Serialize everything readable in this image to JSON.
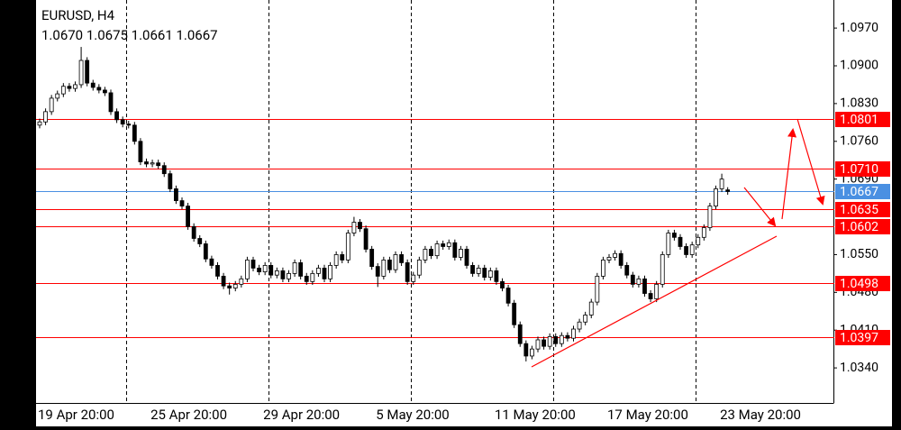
{
  "chart_data": {
    "type": "candlestick",
    "title": "EURUSD, H4",
    "subtitle": "1.0670 1.0675 1.0661 1.0667",
    "categories": [
      "19 Apr 20:00",
      null,
      null,
      null,
      null,
      null,
      null,
      null,
      null,
      null,
      null,
      null,
      null,
      null,
      null,
      null,
      null,
      null,
      null,
      "25 Apr 20:00",
      null,
      null,
      null,
      null,
      null,
      null,
      null,
      null,
      null,
      null,
      null,
      null,
      null,
      null,
      null,
      null,
      null,
      null,
      "29 Apr 20:00",
      null,
      null,
      null,
      null,
      null,
      null,
      null,
      null,
      null,
      null,
      null,
      null,
      null,
      null,
      null,
      null,
      null,
      null,
      "5 May 20:00",
      null,
      null,
      null,
      null,
      null,
      null,
      null,
      null,
      null,
      null,
      null,
      null,
      null,
      null,
      null,
      null,
      null,
      null,
      null,
      "11 May 20:00",
      null,
      null,
      null,
      null,
      null,
      null,
      null,
      null,
      null,
      null,
      null,
      null,
      null,
      null,
      null,
      null,
      null,
      null,
      "17 May 20:00",
      null,
      null,
      null,
      null,
      null,
      null,
      null,
      null,
      null,
      null,
      null,
      null,
      null,
      null,
      null,
      null,
      null,
      null,
      "23 May 20:00",
      null
    ],
    "ohlc": [
      [
        1.079,
        1.0802,
        1.0784,
        1.0796
      ],
      [
        1.0796,
        1.0821,
        1.079,
        1.0815
      ],
      [
        1.0815,
        1.0846,
        1.0809,
        1.084
      ],
      [
        1.084,
        1.0854,
        1.0834,
        1.0848
      ],
      [
        1.0848,
        1.0868,
        1.0842,
        1.0862
      ],
      [
        1.0862,
        1.0868,
        1.0852,
        1.0858
      ],
      [
        1.0858,
        1.0871,
        1.0852,
        1.0865
      ],
      [
        1.0865,
        1.0935,
        1.0859,
        1.091
      ],
      [
        1.091,
        1.0916,
        1.0862,
        1.0868
      ],
      [
        1.0868,
        1.0874,
        1.0854,
        1.086
      ],
      [
        1.086,
        1.0866,
        1.0849,
        1.0855
      ],
      [
        1.0855,
        1.0861,
        1.0844,
        1.085
      ],
      [
        1.085,
        1.0856,
        1.0809,
        1.0815
      ],
      [
        1.0815,
        1.0821,
        1.0794,
        1.08
      ],
      [
        1.08,
        1.0806,
        1.0786,
        1.0792
      ],
      [
        1.0792,
        1.0798,
        1.0784,
        1.079
      ],
      [
        1.079,
        1.0796,
        1.0754,
        1.076
      ],
      [
        1.076,
        1.0766,
        1.0716,
        1.0722
      ],
      [
        1.0722,
        1.0728,
        1.0712,
        1.0718
      ],
      [
        1.0718,
        1.0726,
        1.0712,
        1.072
      ],
      [
        1.072,
        1.0726,
        1.0709,
        1.0715
      ],
      [
        1.0715,
        1.0721,
        1.0694,
        1.07
      ],
      [
        1.07,
        1.0706,
        1.0666,
        1.0672
      ],
      [
        1.0672,
        1.0678,
        1.0644,
        1.065
      ],
      [
        1.065,
        1.0656,
        1.0634,
        1.064
      ],
      [
        1.064,
        1.0646,
        1.0596,
        1.0602
      ],
      [
        1.0602,
        1.0608,
        1.0574,
        1.058
      ],
      [
        1.058,
        1.0586,
        1.0564,
        1.057
      ],
      [
        1.057,
        1.0576,
        1.0536,
        1.0542
      ],
      [
        1.0542,
        1.0548,
        1.0524,
        1.053
      ],
      [
        1.053,
        1.0536,
        1.0504,
        1.051
      ],
      [
        1.051,
        1.0516,
        1.0486,
        1.0492
      ],
      [
        1.0492,
        1.0498,
        1.0476,
        1.0488
      ],
      [
        1.0488,
        1.0501,
        1.0482,
        1.0495
      ],
      [
        1.0495,
        1.0511,
        1.0489,
        1.0505
      ],
      [
        1.0505,
        1.0546,
        1.0499,
        1.054
      ],
      [
        1.054,
        1.0546,
        1.0519,
        1.0525
      ],
      [
        1.0525,
        1.0531,
        1.0512,
        1.0518
      ],
      [
        1.0518,
        1.0536,
        1.0512,
        1.053
      ],
      [
        1.053,
        1.0536,
        1.0506,
        1.0512
      ],
      [
        1.0512,
        1.0526,
        1.0506,
        1.052
      ],
      [
        1.052,
        1.0526,
        1.0499,
        1.0505
      ],
      [
        1.0505,
        1.0521,
        1.0499,
        1.0515
      ],
      [
        1.0515,
        1.0541,
        1.0509,
        1.0535
      ],
      [
        1.0535,
        1.0541,
        1.0504,
        1.051
      ],
      [
        1.051,
        1.0516,
        1.0494,
        1.05
      ],
      [
        1.05,
        1.0521,
        1.0494,
        1.0515
      ],
      [
        1.0515,
        1.0531,
        1.0509,
        1.0525
      ],
      [
        1.0525,
        1.0531,
        1.0499,
        1.0505
      ],
      [
        1.0505,
        1.0536,
        1.0499,
        1.053
      ],
      [
        1.053,
        1.0556,
        1.0524,
        1.055
      ],
      [
        1.055,
        1.0556,
        1.0534,
        1.054
      ],
      [
        1.054,
        1.0596,
        1.0534,
        1.059
      ],
      [
        1.059,
        1.062,
        1.0584,
        1.061
      ],
      [
        1.061,
        1.0616,
        1.0592,
        1.0598
      ],
      [
        1.0598,
        1.0604,
        1.0554,
        1.056
      ],
      [
        1.056,
        1.0566,
        1.0522,
        1.0528
      ],
      [
        1.0528,
        1.0534,
        1.049,
        1.051
      ],
      [
        1.051,
        1.0546,
        1.0504,
        1.054
      ],
      [
        1.054,
        1.0546,
        1.0516,
        1.0522
      ],
      [
        1.0522,
        1.0556,
        1.0516,
        1.055
      ],
      [
        1.055,
        1.0556,
        1.0529,
        1.0535
      ],
      [
        1.0535,
        1.0541,
        1.0494,
        1.05
      ],
      [
        1.05,
        1.0518,
        1.0494,
        1.0512
      ],
      [
        1.0512,
        1.0546,
        1.0506,
        1.054
      ],
      [
        1.054,
        1.0566,
        1.0534,
        1.056
      ],
      [
        1.056,
        1.0566,
        1.0542,
        1.0548
      ],
      [
        1.0548,
        1.0576,
        1.0542,
        1.057
      ],
      [
        1.057,
        1.0576,
        1.0559,
        1.0565
      ],
      [
        1.0565,
        1.0578,
        1.0559,
        1.0572
      ],
      [
        1.0572,
        1.0578,
        1.0539,
        1.0545
      ],
      [
        1.0545,
        1.0566,
        1.0539,
        1.056
      ],
      [
        1.056,
        1.0566,
        1.0524,
        1.053
      ],
      [
        1.053,
        1.0536,
        1.0509,
        1.0515
      ],
      [
        1.0515,
        1.0531,
        1.0509,
        1.0525
      ],
      [
        1.0525,
        1.0531,
        1.0502,
        1.0508
      ],
      [
        1.0508,
        1.0526,
        1.0502,
        1.052
      ],
      [
        1.052,
        1.0526,
        1.0494,
        1.05
      ],
      [
        1.05,
        1.0506,
        1.0482,
        1.0488
      ],
      [
        1.0488,
        1.0494,
        1.0454,
        1.046
      ],
      [
        1.046,
        1.0466,
        1.0414,
        1.042
      ],
      [
        1.042,
        1.0426,
        1.0379,
        1.0385
      ],
      [
        1.0385,
        1.0391,
        1.0352,
        1.0362
      ],
      [
        1.0362,
        1.0381,
        1.0356,
        1.0375
      ],
      [
        1.0375,
        1.0398,
        1.0369,
        1.0392
      ],
      [
        1.0392,
        1.0398,
        1.0374,
        1.038
      ],
      [
        1.038,
        1.0404,
        1.0374,
        1.0398
      ],
      [
        1.0398,
        1.0404,
        1.0379,
        1.0385
      ],
      [
        1.0385,
        1.0406,
        1.0379,
        1.04
      ],
      [
        1.04,
        1.0406,
        1.0389,
        1.0395
      ],
      [
        1.0395,
        1.0418,
        1.0389,
        1.0412
      ],
      [
        1.0412,
        1.0431,
        1.0406,
        1.0425
      ],
      [
        1.0425,
        1.0444,
        1.0419,
        1.0438
      ],
      [
        1.0438,
        1.0468,
        1.0432,
        1.0462
      ],
      [
        1.0462,
        1.0516,
        1.0456,
        1.051
      ],
      [
        1.051,
        1.0546,
        1.0504,
        1.054
      ],
      [
        1.054,
        1.0551,
        1.0534,
        1.0545
      ],
      [
        1.0545,
        1.0558,
        1.0539,
        1.0552
      ],
      [
        1.0552,
        1.0558,
        1.0524,
        1.053
      ],
      [
        1.053,
        1.0536,
        1.0506,
        1.0512
      ],
      [
        1.0512,
        1.0518,
        1.0489,
        1.0495
      ],
      [
        1.0495,
        1.0511,
        1.0489,
        1.0505
      ],
      [
        1.0505,
        1.0511,
        1.0472,
        1.0478
      ],
      [
        1.0478,
        1.0484,
        1.0462,
        1.0468
      ],
      [
        1.0468,
        1.0501,
        1.0462,
        1.0495
      ],
      [
        1.0495,
        1.0556,
        1.0489,
        1.055
      ],
      [
        1.055,
        1.0596,
        1.0544,
        1.059
      ],
      [
        1.059,
        1.0596,
        1.0576,
        1.0582
      ],
      [
        1.0582,
        1.0588,
        1.0559,
        1.0565
      ],
      [
        1.0565,
        1.0571,
        1.0544,
        1.055
      ],
      [
        1.055,
        1.0574,
        1.0544,
        1.0568
      ],
      [
        1.0568,
        1.0588,
        1.0562,
        1.0582
      ],
      [
        1.0582,
        1.0606,
        1.0576,
        1.06
      ],
      [
        1.06,
        1.0646,
        1.0594,
        1.064
      ],
      [
        1.064,
        1.0678,
        1.0634,
        1.0672
      ],
      [
        1.0672,
        1.07,
        1.0666,
        1.069
      ],
      [
        1.067,
        1.0675,
        1.0661,
        1.0667
      ]
    ],
    "up_color": "#ffffff",
    "down_color": "#000000",
    "ylim": [
      1.0275,
      1.1022
    ],
    "yticks": [
      {
        "value": 1.097,
        "label": "1.0970"
      },
      {
        "value": 1.09,
        "label": "1.0900"
      },
      {
        "value": 1.083,
        "label": "1.0830"
      },
      {
        "value": 1.076,
        "label": "1.0760"
      },
      {
        "value": 1.069,
        "label": "1.0690"
      },
      {
        "value": 1.055,
        "label": "1.0550"
      },
      {
        "value": 1.048,
        "label": "1.0480"
      },
      {
        "value": 1.041,
        "label": "1.0410"
      },
      {
        "value": 1.034,
        "label": "1.0340"
      }
    ],
    "levels": [
      {
        "value": 1.0801,
        "color": "#ff0000"
      },
      {
        "value": 1.071,
        "label": "1.0710",
        "color": "#ff0000"
      },
      {
        "value": 1.0667,
        "color": "#4a90e2"
      },
      {
        "value": 1.0635,
        "color": "#ff0000"
      },
      {
        "value": 1.0602,
        "color": "#ff0000"
      },
      {
        "value": 1.0498,
        "color": "#ff0000"
      },
      {
        "value": 1.0397,
        "color": "#ff0000"
      }
    ]
  }
}
